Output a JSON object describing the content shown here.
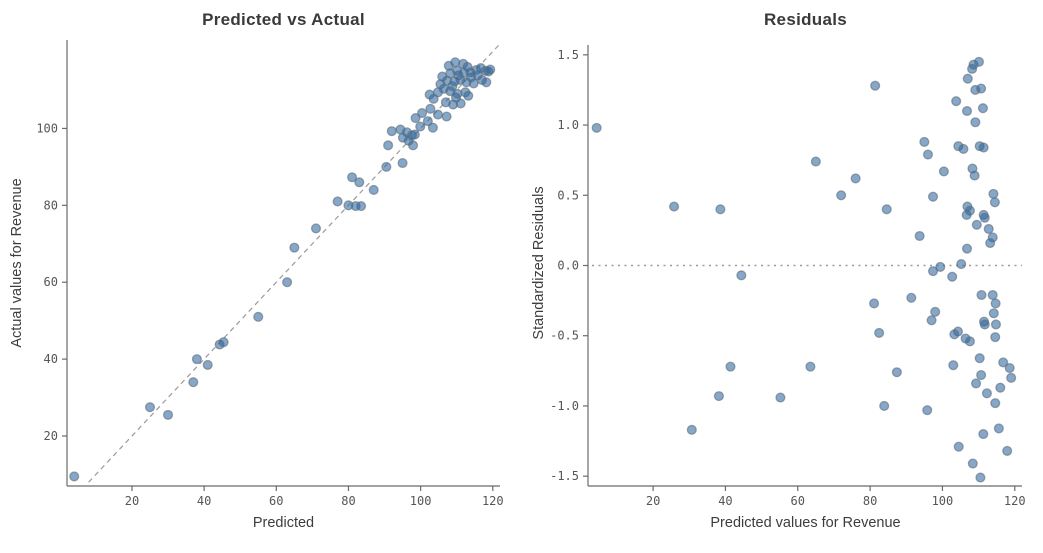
{
  "colors": {
    "background": "#ffffff",
    "title": "#3a3a3a",
    "axis_label": "#3d3d3d",
    "tick_label": "#565656",
    "spine": "#6b6b6b",
    "point_fill": "#2e68a0",
    "point_stroke": "#5e6d7a",
    "reference_line": "#9a9a9a"
  },
  "marker": {
    "radius": 4.4,
    "fill_opacity": 0.58,
    "stroke_opacity": 0.6,
    "stroke_width": 1.3
  },
  "chart_data": [
    {
      "type": "scatter",
      "title": "Predicted vs Actual",
      "xlabel": "Predicted",
      "ylabel": "Actual values for Revenue",
      "xlim": [
        2,
        122
      ],
      "ylim": [
        7,
        123
      ],
      "xticks": [
        20,
        40,
        60,
        80,
        100,
        120
      ],
      "xtick_labels": [
        "20",
        "40",
        "60",
        "80",
        "100",
        "120"
      ],
      "yticks": [
        20,
        40,
        60,
        80,
        100
      ],
      "ytick_labels": [
        "20",
        "40",
        "60",
        "80",
        "100"
      ],
      "grid": false,
      "legend": null,
      "reference_line": {
        "kind": "identity",
        "style": "dashed"
      },
      "points": [
        [
          4,
          9.5
        ],
        [
          25,
          27.5
        ],
        [
          30,
          25.5
        ],
        [
          37,
          34
        ],
        [
          38,
          40
        ],
        [
          41,
          38.5
        ],
        [
          44.3,
          43.8
        ],
        [
          45.4,
          44.4
        ],
        [
          55,
          51
        ],
        [
          63,
          60
        ],
        [
          65,
          69
        ],
        [
          71,
          74
        ],
        [
          77,
          81
        ],
        [
          80,
          80
        ],
        [
          82,
          79.8
        ],
        [
          83.5,
          79.8
        ],
        [
          81,
          87.3
        ],
        [
          83,
          86
        ],
        [
          87,
          84
        ],
        [
          90.5,
          90
        ],
        [
          91,
          95.6
        ],
        [
          92,
          99.3
        ],
        [
          95,
          91
        ],
        [
          94.4,
          99.7
        ],
        [
          96.2,
          99
        ],
        [
          95.1,
          97.6
        ],
        [
          97.6,
          98.2
        ],
        [
          97.9,
          95.6
        ],
        [
          96.7,
          96.8
        ],
        [
          98.4,
          98.4
        ],
        [
          98.6,
          102.7
        ],
        [
          99.9,
          100.5
        ],
        [
          100.4,
          104
        ],
        [
          102,
          101.9
        ],
        [
          102.5,
          108.8
        ],
        [
          102.7,
          105.1
        ],
        [
          103.4,
          100.2
        ],
        [
          103.6,
          107.7
        ],
        [
          104.8,
          109.4
        ],
        [
          104.8,
          103.6
        ],
        [
          105.5,
          111.5
        ],
        [
          106,
          113.5
        ],
        [
          106.4,
          110.3
        ],
        [
          107,
          106.8
        ],
        [
          107.2,
          103.1
        ],
        [
          107.3,
          112.4
        ],
        [
          107.8,
          116.3
        ],
        [
          108.2,
          114.3
        ],
        [
          108.2,
          109.7
        ],
        [
          108.8,
          111
        ],
        [
          109,
          106.2
        ],
        [
          109.4,
          112.2
        ],
        [
          109.6,
          117.2
        ],
        [
          109.8,
          108
        ],
        [
          110.1,
          115
        ],
        [
          110.2,
          109
        ],
        [
          110.5,
          113.8
        ],
        [
          111,
          112.6
        ],
        [
          111.1,
          106.5
        ],
        [
          111.8,
          116.8
        ],
        [
          112,
          114.5
        ],
        [
          112.4,
          109.4
        ],
        [
          112.7,
          112
        ],
        [
          113,
          116
        ],
        [
          113.2,
          108.5
        ],
        [
          113.8,
          114.6
        ],
        [
          114,
          113.3
        ],
        [
          114.7,
          111.7
        ],
        [
          115.4,
          115.2
        ],
        [
          115.8,
          113.8
        ],
        [
          116.7,
          115.7
        ],
        [
          117,
          112.6
        ],
        [
          118,
          115
        ],
        [
          118.2,
          112
        ],
        [
          118.8,
          114.8
        ],
        [
          119.3,
          115.3
        ]
      ]
    },
    {
      "type": "scatter",
      "title": "Residuals",
      "xlabel": "Predicted values for Revenue",
      "ylabel": "Standardized Residuals",
      "xlim": [
        2,
        122
      ],
      "ylim": [
        -1.57,
        1.57
      ],
      "xticks": [
        20,
        40,
        60,
        80,
        100,
        120
      ],
      "xtick_labels": [
        "20",
        "40",
        "60",
        "80",
        "100",
        "120"
      ],
      "yticks": [
        -1.5,
        -1.0,
        -0.5,
        0.0,
        0.5,
        1.0,
        1.5
      ],
      "ytick_labels": [
        "-1.5",
        "-1.0",
        "-0.5",
        "0.0",
        "0.5",
        "1.0",
        "1.5"
      ],
      "grid": false,
      "legend": null,
      "reference_line": {
        "kind": "horizontal",
        "y": 0,
        "style": "dotted"
      },
      "points": [
        [
          4.4,
          0.98
        ],
        [
          25.8,
          0.42
        ],
        [
          38.6,
          0.4
        ],
        [
          65,
          0.74
        ],
        [
          72,
          0.5
        ],
        [
          76,
          0.62
        ],
        [
          81.4,
          1.28
        ],
        [
          84.6,
          0.4
        ],
        [
          95,
          0.88
        ],
        [
          96,
          0.79
        ],
        [
          93.7,
          0.21
        ],
        [
          97.4,
          0.49
        ],
        [
          100.4,
          0.67
        ],
        [
          103.8,
          1.17
        ],
        [
          104.4,
          0.85
        ],
        [
          105.8,
          0.83
        ],
        [
          106.8,
          1.1
        ],
        [
          107,
          1.33
        ],
        [
          108.2,
          1.4
        ],
        [
          108.6,
          1.43
        ],
        [
          110.1,
          1.45
        ],
        [
          109.1,
          1.25
        ],
        [
          110.7,
          1.26
        ],
        [
          109.1,
          1.02
        ],
        [
          111.2,
          1.12
        ],
        [
          110.3,
          0.85
        ],
        [
          111.4,
          0.84
        ],
        [
          108.3,
          0.69
        ],
        [
          108.9,
          0.64
        ],
        [
          106.9,
          0.42
        ],
        [
          107.6,
          0.39
        ],
        [
          106.7,
          0.36
        ],
        [
          109.5,
          0.29
        ],
        [
          111.4,
          0.36
        ],
        [
          111.7,
          0.34
        ],
        [
          114.1,
          0.51
        ],
        [
          114.5,
          0.45
        ],
        [
          112.8,
          0.26
        ],
        [
          113.9,
          0.2
        ],
        [
          113.2,
          0.16
        ],
        [
          106.8,
          0.12
        ],
        [
          105.2,
          0.01
        ],
        [
          97.4,
          -0.04
        ],
        [
          99.4,
          -0.01
        ],
        [
          102.7,
          -0.08
        ],
        [
          44.4,
          -0.07
        ],
        [
          81.1,
          -0.27
        ],
        [
          91.4,
          -0.23
        ],
        [
          110.8,
          -0.21
        ],
        [
          113.9,
          -0.21
        ],
        [
          114.7,
          -0.27
        ],
        [
          98,
          -0.33
        ],
        [
          114.2,
          -0.34
        ],
        [
          97,
          -0.39
        ],
        [
          111.5,
          -0.4
        ],
        [
          111.7,
          -0.42
        ],
        [
          114.8,
          -0.42
        ],
        [
          104.3,
          -0.47
        ],
        [
          82.5,
          -0.48
        ],
        [
          103.3,
          -0.49
        ],
        [
          106.4,
          -0.52
        ],
        [
          107.6,
          -0.54
        ],
        [
          114.6,
          -0.51
        ],
        [
          41.4,
          -0.72
        ],
        [
          63.5,
          -0.72
        ],
        [
          87.4,
          -0.76
        ],
        [
          103,
          -0.71
        ],
        [
          110.3,
          -0.66
        ],
        [
          116.8,
          -0.69
        ],
        [
          118.6,
          -0.73
        ],
        [
          110.7,
          -0.78
        ],
        [
          109.3,
          -0.84
        ],
        [
          116,
          -0.87
        ],
        [
          119,
          -0.8
        ],
        [
          38.2,
          -0.93
        ],
        [
          55.2,
          -0.94
        ],
        [
          112.3,
          -0.91
        ],
        [
          83.9,
          -1.0
        ],
        [
          114.6,
          -0.98
        ],
        [
          95.8,
          -1.03
        ],
        [
          30.7,
          -1.17
        ],
        [
          111.3,
          -1.2
        ],
        [
          115.6,
          -1.16
        ],
        [
          104.5,
          -1.29
        ],
        [
          117.9,
          -1.32
        ],
        [
          108.4,
          -1.41
        ],
        [
          110.5,
          -1.51
        ]
      ]
    }
  ]
}
